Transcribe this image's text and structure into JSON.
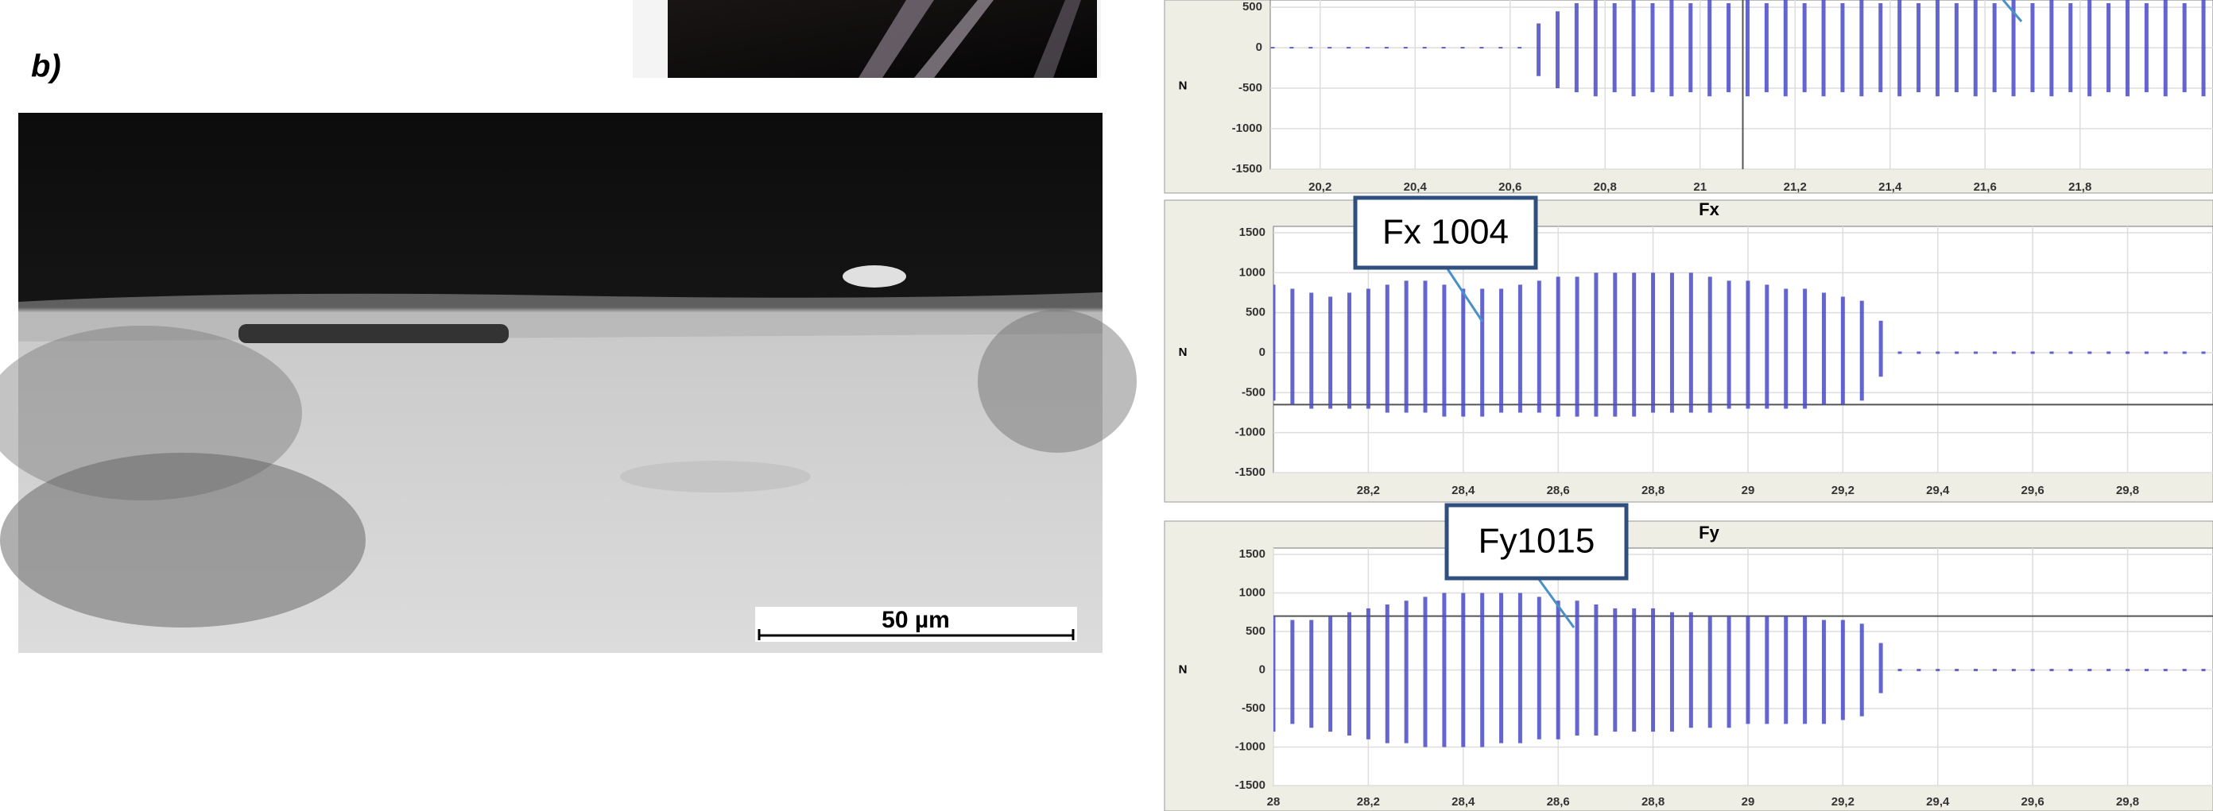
{
  "figure": {
    "panel_label": "b)",
    "scale_bar": "50 µm"
  },
  "chart_data": [
    {
      "type": "envelope",
      "y_label": "N",
      "color": "#4b4bc8",
      "grid": true,
      "xlim": [
        20.095,
        22.08
      ],
      "ylim": [
        -1500,
        550
      ],
      "xticks": [
        {
          "value": 20.2,
          "label": "20,2"
        },
        {
          "value": 20.4,
          "label": "20,4"
        },
        {
          "value": 20.6,
          "label": "20,6"
        },
        {
          "value": 20.8,
          "label": "20,8"
        },
        21,
        {
          "value": 21.2,
          "label": "21,2"
        },
        {
          "value": 21.4,
          "label": "21,4"
        },
        {
          "value": 21.6,
          "label": "21,6"
        },
        {
          "value": 21.8,
          "label": "21,8"
        }
      ],
      "yticks": [
        500,
        0,
        -500,
        -1000,
        -1500
      ],
      "ref_x": 21.09,
      "x": [
        20.1,
        20.14,
        20.18,
        20.22,
        20.26,
        20.3,
        20.34,
        20.38,
        20.42,
        20.46,
        20.5,
        20.54,
        20.58,
        20.62,
        20.66,
        20.7,
        20.74,
        20.78,
        20.82,
        20.86,
        20.9,
        20.94,
        20.98,
        21.02,
        21.06,
        21.1,
        21.14,
        21.18,
        21.22,
        21.26,
        21.3,
        21.34,
        21.38,
        21.42,
        21.46,
        21.5,
        21.54,
        21.58,
        21.62,
        21.66,
        21.7,
        21.74,
        21.78,
        21.82,
        21.86,
        21.9,
        21.94,
        21.98,
        22.02,
        22.06
      ],
      "max": [
        10,
        10,
        10,
        10,
        10,
        10,
        10,
        10,
        10,
        10,
        10,
        10,
        10,
        10,
        300,
        450,
        550,
        600,
        550,
        600,
        550,
        600,
        550,
        600,
        550,
        600,
        550,
        600,
        550,
        600,
        550,
        600,
        550,
        600,
        550,
        600,
        550,
        600,
        550,
        600,
        550,
        600,
        550,
        600,
        550,
        600,
        550,
        600,
        550,
        600
      ],
      "min": [
        -10,
        -10,
        -10,
        -10,
        -10,
        -10,
        -10,
        -10,
        -10,
        -10,
        -10,
        -10,
        -10,
        -10,
        -350,
        -500,
        -550,
        -600,
        -550,
        -600,
        -550,
        -600,
        -550,
        -600,
        -550,
        -600,
        -550,
        -600,
        -550,
        -600,
        -550,
        -600,
        -550,
        -600,
        -550,
        -600,
        -550,
        -600,
        -550,
        -600,
        -550,
        -600,
        -550,
        -600,
        -550,
        -600,
        -550,
        -600,
        -550,
        -600
      ]
    },
    {
      "type": "envelope",
      "title": "Fx",
      "y_label": "N",
      "annotation": "Fx 1004",
      "color": "#4b4bc8",
      "grid": true,
      "xlim": [
        28,
        29.98
      ],
      "ylim": [
        -1500,
        1500
      ],
      "xticks": [
        {
          "value": 28.2,
          "label": "28,2"
        },
        {
          "value": 28.4,
          "label": "28,4"
        },
        {
          "value": 28.6,
          "label": "28,6"
        },
        {
          "value": 28.8,
          "label": "28,8"
        },
        29,
        {
          "value": 29.2,
          "label": "29,2"
        },
        {
          "value": 29.4,
          "label": "29,4"
        },
        {
          "value": 29.6,
          "label": "29,6"
        },
        {
          "value": 29.8,
          "label": "29,8"
        }
      ],
      "yticks": [
        1500,
        1000,
        500,
        0,
        -500,
        -1000,
        -1500
      ],
      "ref_y": -650,
      "x": [
        28,
        28.04,
        28.08,
        28.12,
        28.16,
        28.2,
        28.24,
        28.28,
        28.32,
        28.36,
        28.4,
        28.44,
        28.48,
        28.52,
        28.56,
        28.6,
        28.64,
        28.68,
        28.72,
        28.76,
        28.8,
        28.84,
        28.88,
        28.92,
        28.96,
        29,
        29.04,
        29.08,
        29.12,
        29.16,
        29.2,
        29.24,
        29.28,
        29.32,
        29.36,
        29.4,
        29.44,
        29.48,
        29.52,
        29.56,
        29.6,
        29.64,
        29.68,
        29.72,
        29.76,
        29.8,
        29.84,
        29.88,
        29.92,
        29.96
      ],
      "max": [
        850,
        800,
        750,
        700,
        750,
        800,
        850,
        900,
        900,
        850,
        800,
        800,
        800,
        850,
        900,
        950,
        950,
        1000,
        1000,
        1000,
        1000,
        1000,
        1000,
        950,
        900,
        900,
        850,
        800,
        800,
        750,
        700,
        650,
        400,
        15,
        15,
        15,
        15,
        15,
        15,
        15,
        15,
        15,
        15,
        15,
        15,
        15,
        15,
        15,
        15,
        15
      ],
      "min": [
        -600,
        -650,
        -700,
        -700,
        -700,
        -700,
        -750,
        -750,
        -750,
        -800,
        -800,
        -800,
        -750,
        -750,
        -750,
        -800,
        -800,
        -800,
        -800,
        -800,
        -750,
        -750,
        -750,
        -750,
        -700,
        -700,
        -700,
        -700,
        -700,
        -650,
        -650,
        -600,
        -300,
        -15,
        -15,
        -15,
        -15,
        -15,
        -15,
        -15,
        -15,
        -15,
        -15,
        -15,
        -15,
        -15,
        -15,
        -15,
        -15,
        -15
      ]
    },
    {
      "type": "envelope",
      "title": "Fy",
      "y_label": "N",
      "annotation": "Fy1015",
      "color": "#4b4bc8",
      "grid": true,
      "xlim": [
        28,
        29.98
      ],
      "ylim": [
        -1500,
        1500
      ],
      "xticks": [
        28,
        {
          "value": 28.2,
          "label": "28,2"
        },
        {
          "value": 28.4,
          "label": "28,4"
        },
        {
          "value": 28.6,
          "label": "28,6"
        },
        {
          "value": 28.8,
          "label": "28,8"
        },
        29,
        {
          "value": 29.2,
          "label": "29,2"
        },
        {
          "value": 29.4,
          "label": "29,4"
        },
        {
          "value": 29.6,
          "label": "29,6"
        },
        {
          "value": 29.8,
          "label": "29,8"
        }
      ],
      "yticks": [
        1500,
        1000,
        500,
        0,
        -500,
        -1000,
        -1500
      ],
      "ref_y": 700,
      "x": [
        28,
        28.04,
        28.08,
        28.12,
        28.16,
        28.2,
        28.24,
        28.28,
        28.32,
        28.36,
        28.4,
        28.44,
        28.48,
        28.52,
        28.56,
        28.6,
        28.64,
        28.68,
        28.72,
        28.76,
        28.8,
        28.84,
        28.88,
        28.92,
        28.96,
        29,
        29.04,
        29.08,
        29.12,
        29.16,
        29.2,
        29.24,
        29.28,
        29.32,
        29.36,
        29.4,
        29.44,
        29.48,
        29.52,
        29.56,
        29.6,
        29.64,
        29.68,
        29.72,
        29.76,
        29.8,
        29.84,
        29.88,
        29.92,
        29.96
      ],
      "max": [
        700,
        650,
        650,
        700,
        750,
        800,
        850,
        900,
        950,
        1000,
        1000,
        1000,
        1000,
        1000,
        950,
        900,
        900,
        850,
        800,
        800,
        800,
        750,
        750,
        700,
        700,
        700,
        700,
        700,
        700,
        650,
        650,
        600,
        350,
        15,
        15,
        15,
        15,
        15,
        15,
        15,
        15,
        15,
        15,
        15,
        15,
        15,
        15,
        15,
        15,
        15
      ],
      "min": [
        -800,
        -700,
        -750,
        -800,
        -850,
        -900,
        -950,
        -950,
        -1000,
        -1000,
        -1000,
        -1000,
        -950,
        -950,
        -900,
        -900,
        -850,
        -850,
        -800,
        -800,
        -800,
        -800,
        -750,
        -750,
        -750,
        -700,
        -700,
        -700,
        -700,
        -700,
        -650,
        -600,
        -300,
        -15,
        -15,
        -15,
        -15,
        -15,
        -15,
        -15,
        -15,
        -15,
        -15,
        -15,
        -15,
        -15,
        -15,
        -15,
        -15,
        -15
      ]
    }
  ]
}
